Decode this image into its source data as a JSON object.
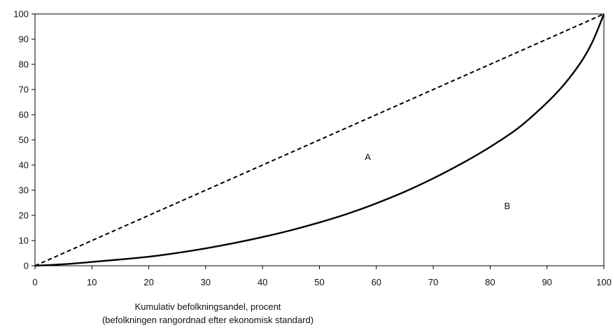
{
  "chart_data": {
    "type": "line",
    "title": "",
    "xlabel_line1": "Kumulativ befolkningsandel, procent",
    "xlabel_line2": "(befolkningen rangordnad efter ekonomisk standard)",
    "ylabel": "",
    "xlim": [
      0,
      100
    ],
    "ylim": [
      0,
      100
    ],
    "xticks": [
      0,
      10,
      20,
      30,
      40,
      50,
      60,
      70,
      80,
      90,
      100
    ],
    "yticks": [
      0,
      10,
      20,
      30,
      40,
      50,
      60,
      70,
      80,
      90,
      100
    ],
    "grid": false,
    "series": [
      {
        "style": "dashed",
        "x": [
          0,
          100
        ],
        "y": [
          0,
          100
        ]
      },
      {
        "style": "solid",
        "x": [
          0,
          5,
          10,
          15,
          20,
          25,
          30,
          35,
          40,
          45,
          50,
          55,
          60,
          65,
          70,
          75,
          80,
          85,
          90,
          93,
          96,
          98,
          100
        ],
        "y": [
          0,
          0.6,
          1.5,
          2.5,
          3.6,
          5.1,
          6.9,
          9,
          11.4,
          14.1,
          17.2,
          20.7,
          24.8,
          29.4,
          34.7,
          40.6,
          47.2,
          54.8,
          64.8,
          72,
          81,
          89,
          100
        ]
      }
    ],
    "annotations": [
      {
        "text": "A",
        "x": 58.5,
        "y": 42
      },
      {
        "text": "B",
        "x": 83,
        "y": 22.5
      }
    ]
  }
}
